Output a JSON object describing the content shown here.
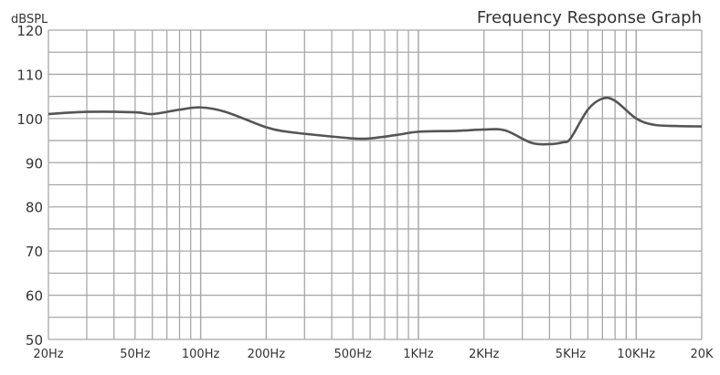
{
  "chart_data": {
    "type": "line",
    "title": "Frequency Response Graph",
    "ylabel": "dBSPL",
    "xlabel": "",
    "xscale": "log",
    "xlim": [
      20,
      20000
    ],
    "ylim": [
      50,
      120
    ],
    "grid": true,
    "y_ticks": [
      50,
      60,
      70,
      80,
      90,
      100,
      110,
      120
    ],
    "x_ticks": [
      {
        "value": 20,
        "label": "20Hz"
      },
      {
        "value": 50,
        "label": "50Hz"
      },
      {
        "value": 100,
        "label": "100Hz"
      },
      {
        "value": 200,
        "label": "200Hz"
      },
      {
        "value": 500,
        "label": "500Hz"
      },
      {
        "value": 1000,
        "label": "1KHz"
      },
      {
        "value": 2000,
        "label": "2KHz"
      },
      {
        "value": 5000,
        "label": "5KHz"
      },
      {
        "value": 10000,
        "label": "10KHz"
      },
      {
        "value": 20000,
        "label": "20K"
      }
    ],
    "series": [
      {
        "name": "Frequency response",
        "color": "#555555",
        "x": [
          20,
          30,
          50,
          60,
          80,
          100,
          130,
          200,
          250,
          350,
          500,
          600,
          800,
          1000,
          1500,
          2000,
          2500,
          3300,
          4000,
          4600,
          5000,
          6000,
          7000,
          8000,
          10000,
          12000,
          15000,
          20000
        ],
        "y": [
          101,
          101.5,
          101.4,
          101,
          102,
          102.5,
          101.5,
          98,
          97,
          96.2,
          95.5,
          95.5,
          96.3,
          97,
          97.2,
          97.5,
          97.3,
          94.5,
          94.2,
          94.6,
          95.5,
          102,
          104.5,
          104,
          100,
          98.6,
          98.3,
          98.2
        ]
      }
    ]
  }
}
